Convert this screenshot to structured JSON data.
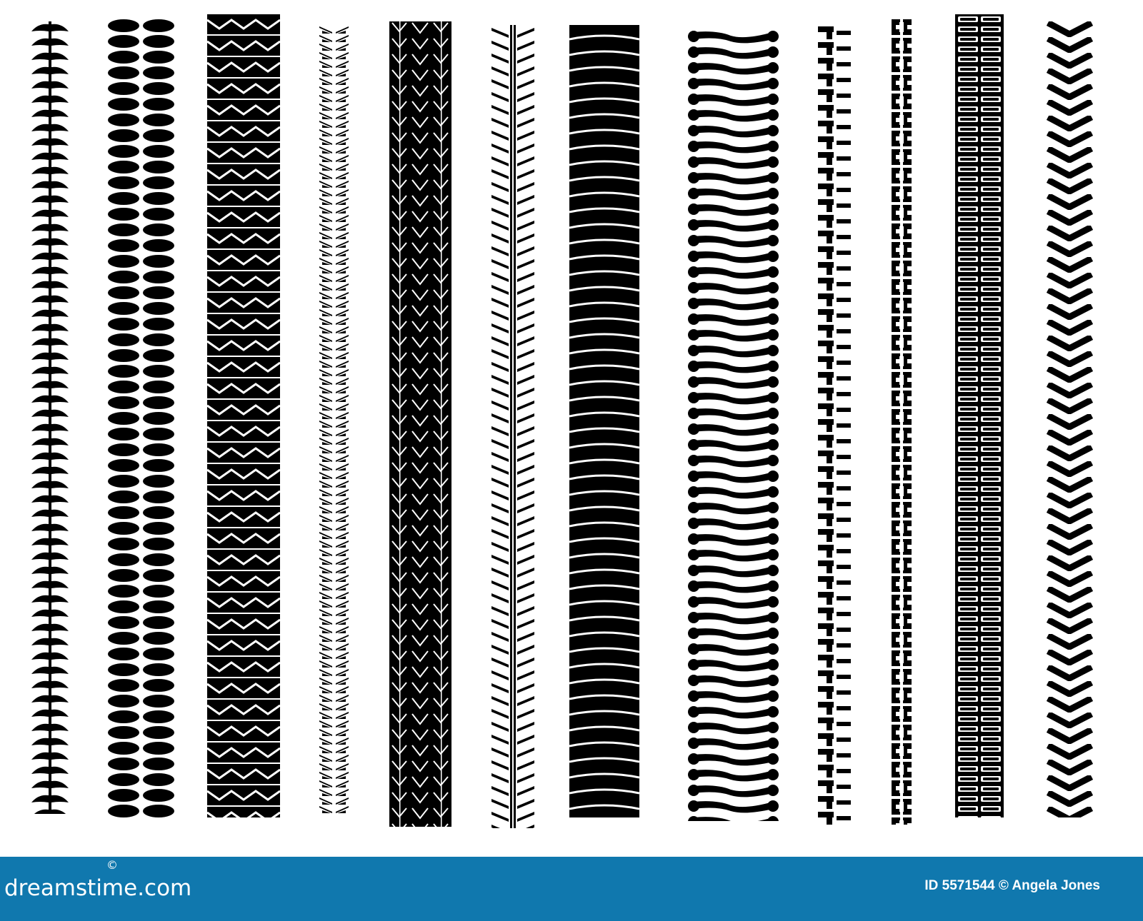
{
  "footer": {
    "logo_text": "dreamstime.com",
    "logo_mark": "©",
    "credit": "ID 5571544 © Angela Jones",
    "background_color": "#1078ae"
  },
  "illustration": {
    "subject": "tire-tread-tracks",
    "ink_color": "#000000"
  }
}
